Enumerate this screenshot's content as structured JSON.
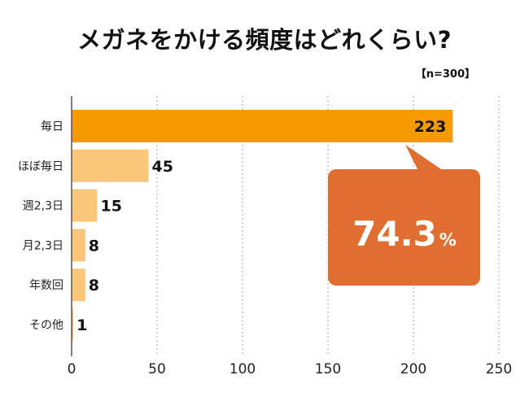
{
  "title": "メガネをかける頻度はどれくらい?",
  "sample_note": "【n=300】",
  "chart_data": {
    "type": "bar",
    "orientation": "horizontal",
    "title": "メガネをかける頻度はどれくらい?",
    "categories": [
      "毎日",
      "ほぼ毎日",
      "週2,3日",
      "月2,3日",
      "年数回",
      "その他"
    ],
    "values": [
      223,
      45,
      15,
      8,
      8,
      1
    ],
    "xlim": [
      0,
      250
    ],
    "xticks": [
      "0",
      "50",
      "100",
      "150",
      "200",
      "250"
    ],
    "grid": "vertical-dotted",
    "callout": {
      "value": "74.3",
      "unit": "%",
      "points_to": "毎日"
    },
    "colors": {
      "highlight": "#F79A00",
      "bar": "#FAC77A",
      "callout": "#E06E30",
      "grid": "#A6A6A6",
      "axis": "#555555"
    }
  }
}
